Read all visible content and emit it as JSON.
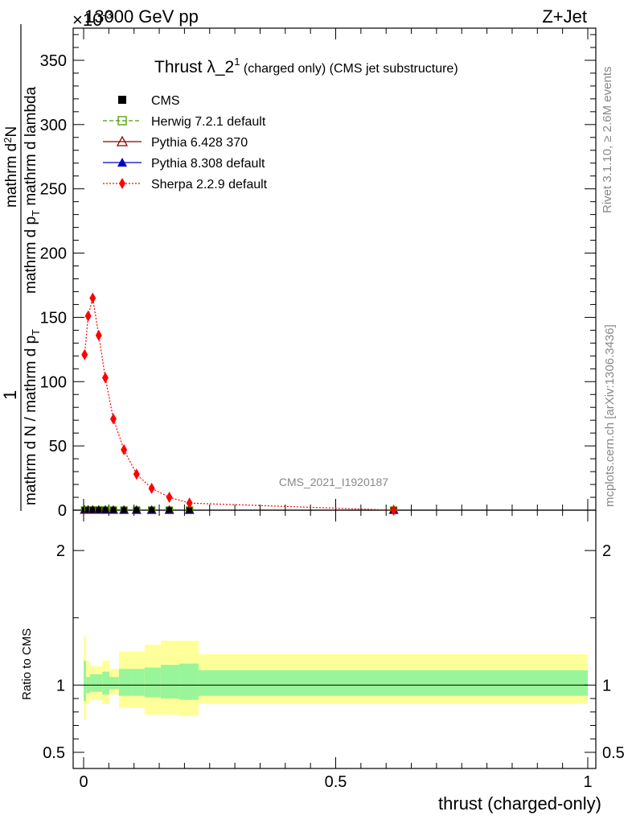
{
  "header": {
    "left": "13000 GeV pp",
    "right": "Z+Jet",
    "exponent": "×10",
    "exponent_power": "-3"
  },
  "side": {
    "rivet": "Rivet 3.1.10, ≥ 2.6M events",
    "mcplots": "mcplots.cern.ch [arXiv:1306.3436]"
  },
  "title": {
    "main": "Thrust λ_2",
    "sup": "1",
    "rest": " (charged only) (CMS jet substructure)"
  },
  "watermark": "CMS_2021_I1920187",
  "ylabel_top": {
    "one": "1",
    "denom": "mathrm d N / mathrm d p",
    "denom_sub": "T",
    "numer_a": "mathrm d",
    "numer_sup": "2",
    "numer_b": "N",
    "denom2": "mathrm d p",
    "denom2_sub": "T",
    "denom2_b": " mathrm d lambda"
  },
  "ylabel_bottom": "Ratio to CMS",
  "xlabel": "thrust (charged-only)",
  "legend": [
    {
      "label": "CMS",
      "color": "#000000",
      "marker": "square-filled",
      "line": "none"
    },
    {
      "label": "Herwig 7.2.1 default",
      "color": "#4a9b00",
      "marker": "square-open",
      "line": "dashed"
    },
    {
      "label": "Pythia 6.428 370",
      "color": "#8b0000",
      "marker": "triangle-open",
      "line": "solid"
    },
    {
      "label": "Pythia 8.308 default",
      "color": "#0000cc",
      "marker": "triangle-filled",
      "line": "solid"
    },
    {
      "label": "Sherpa 2.2.9 default",
      "color": "#ff0000",
      "marker": "diamond-filled",
      "line": "dotted"
    }
  ],
  "chart_data": [
    {
      "type": "line",
      "panel": "main",
      "xlim": [
        0,
        1
      ],
      "ylim": [
        0,
        375
      ],
      "yticks": [
        0,
        50,
        100,
        150,
        200,
        250,
        300,
        350
      ],
      "xticks": [
        0,
        0.5,
        1
      ],
      "xtick_labels": [
        "0",
        "0.5",
        "1"
      ],
      "series": [
        {
          "name": "Sherpa 2.2.9 default",
          "x": [
            0.002,
            0.009,
            0.018,
            0.03,
            0.043,
            0.059,
            0.08,
            0.105,
            0.135,
            0.17,
            0.21,
            0.615
          ],
          "y": [
            121,
            151,
            165,
            136,
            103,
            71,
            47,
            28,
            17,
            10,
            5.5,
            0
          ]
        },
        {
          "name": "CMS",
          "x": [
            0.002,
            0.009,
            0.018,
            0.03,
            0.043,
            0.059,
            0.08,
            0.105,
            0.135,
            0.17,
            0.21,
            0.615
          ],
          "y": [
            0.1,
            0.15,
            0.16,
            0.14,
            0.1,
            0.07,
            0.05,
            0.03,
            0.02,
            0.01,
            0.005,
            0.0
          ]
        }
      ]
    },
    {
      "type": "area",
      "panel": "ratio",
      "xlim": [
        0,
        1
      ],
      "ylim": [
        0.38,
        2.3
      ],
      "yticks": [
        0.5,
        1,
        2
      ],
      "ytick_labels": [
        "0.5",
        "1",
        "2"
      ],
      "bins": [
        0,
        0.005,
        0.013,
        0.024,
        0.037,
        0.051,
        0.07,
        0.095,
        0.121,
        0.153,
        0.19,
        0.228,
        1.0
      ],
      "band_inner_lo": [
        0.88,
        0.94,
        0.95,
        0.95,
        0.93,
        0.97,
        0.92,
        0.92,
        0.91,
        0.9,
        0.89,
        0.92
      ],
      "band_inner_hi": [
        1.18,
        1.06,
        1.08,
        1.08,
        1.1,
        1.06,
        1.12,
        1.12,
        1.13,
        1.15,
        1.16,
        1.11
      ],
      "band_outer_lo": [
        0.74,
        0.86,
        0.89,
        0.89,
        0.86,
        0.93,
        0.83,
        0.83,
        0.78,
        0.78,
        0.77,
        0.86
      ],
      "band_outer_hi": [
        1.36,
        1.18,
        1.14,
        1.14,
        1.18,
        1.12,
        1.25,
        1.25,
        1.3,
        1.33,
        1.33,
        1.23
      ],
      "reference": 1,
      "colors": {
        "inner": "#99f599",
        "outer": "#ffff99"
      }
    }
  ]
}
